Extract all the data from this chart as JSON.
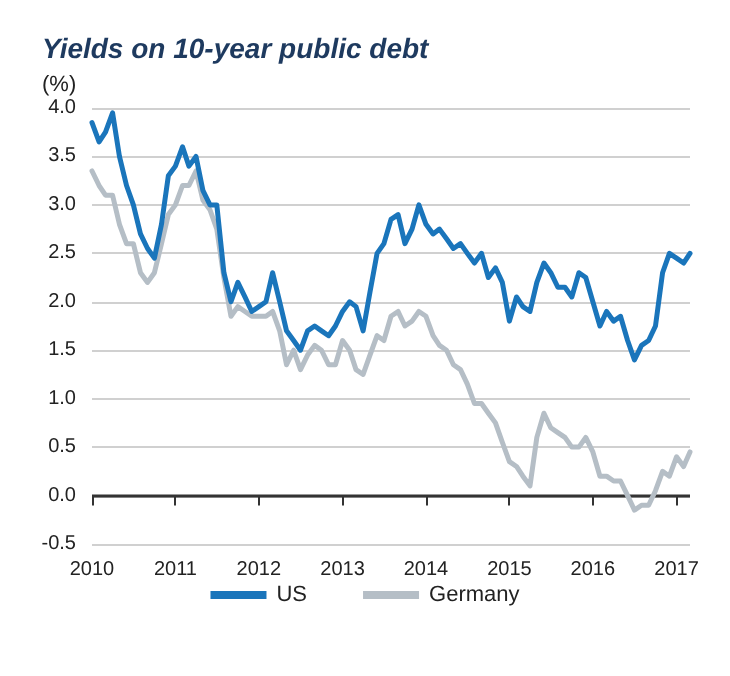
{
  "chart_data": {
    "type": "line",
    "title": "Yields on 10-year public debt",
    "ylabel": "(%)",
    "x": [
      "2010-01",
      "2010-02",
      "2010-03",
      "2010-04",
      "2010-05",
      "2010-06",
      "2010-07",
      "2010-08",
      "2010-09",
      "2010-10",
      "2010-11",
      "2010-12",
      "2011-01",
      "2011-02",
      "2011-03",
      "2011-04",
      "2011-05",
      "2011-06",
      "2011-07",
      "2011-08",
      "2011-09",
      "2011-10",
      "2011-11",
      "2011-12",
      "2012-01",
      "2012-02",
      "2012-03",
      "2012-04",
      "2012-05",
      "2012-06",
      "2012-07",
      "2012-08",
      "2012-09",
      "2012-10",
      "2012-11",
      "2012-12",
      "2013-01",
      "2013-02",
      "2013-03",
      "2013-04",
      "2013-05",
      "2013-06",
      "2013-07",
      "2013-08",
      "2013-09",
      "2013-10",
      "2013-11",
      "2013-12",
      "2014-01",
      "2014-02",
      "2014-03",
      "2014-04",
      "2014-05",
      "2014-06",
      "2014-07",
      "2014-08",
      "2014-09",
      "2014-10",
      "2014-11",
      "2014-12",
      "2015-01",
      "2015-02",
      "2015-03",
      "2015-04",
      "2015-05",
      "2015-06",
      "2015-07",
      "2015-08",
      "2015-09",
      "2015-10",
      "2015-11",
      "2015-12",
      "2016-01",
      "2016-02",
      "2016-03",
      "2016-04",
      "2016-05",
      "2016-06",
      "2016-07",
      "2016-08",
      "2016-09",
      "2016-10",
      "2016-11",
      "2016-12",
      "2017-01",
      "2017-02",
      "2017-03"
    ],
    "series": [
      {
        "name": "US",
        "color": "#1a75bb",
        "values": [
          3.85,
          3.65,
          3.75,
          3.95,
          3.5,
          3.2,
          3.0,
          2.7,
          2.55,
          2.45,
          2.8,
          3.3,
          3.4,
          3.6,
          3.4,
          3.5,
          3.15,
          3.0,
          3.0,
          2.3,
          2.0,
          2.2,
          2.05,
          1.9,
          1.95,
          2.0,
          2.3,
          2.0,
          1.7,
          1.6,
          1.5,
          1.7,
          1.75,
          1.7,
          1.65,
          1.75,
          1.9,
          2.0,
          1.95,
          1.7,
          2.1,
          2.5,
          2.6,
          2.85,
          2.9,
          2.6,
          2.75,
          3.0,
          2.8,
          2.7,
          2.75,
          2.65,
          2.55,
          2.6,
          2.5,
          2.4,
          2.5,
          2.25,
          2.35,
          2.2,
          1.8,
          2.05,
          1.95,
          1.9,
          2.2,
          2.4,
          2.3,
          2.15,
          2.15,
          2.05,
          2.3,
          2.25,
          2.0,
          1.75,
          1.9,
          1.8,
          1.85,
          1.6,
          1.4,
          1.55,
          1.6,
          1.75,
          2.3,
          2.5,
          2.45,
          2.4,
          2.5
        ]
      },
      {
        "name": "Germany",
        "color": "#b5bec6",
        "values": [
          3.35,
          3.2,
          3.1,
          3.1,
          2.8,
          2.6,
          2.6,
          2.3,
          2.2,
          2.3,
          2.6,
          2.9,
          3.0,
          3.2,
          3.2,
          3.35,
          3.05,
          2.95,
          2.75,
          2.25,
          1.85,
          1.95,
          1.9,
          1.85,
          1.85,
          1.85,
          1.9,
          1.7,
          1.35,
          1.5,
          1.3,
          1.45,
          1.55,
          1.5,
          1.35,
          1.35,
          1.6,
          1.5,
          1.3,
          1.25,
          1.45,
          1.65,
          1.6,
          1.85,
          1.9,
          1.75,
          1.8,
          1.9,
          1.85,
          1.65,
          1.55,
          1.5,
          1.35,
          1.3,
          1.15,
          0.95,
          0.95,
          0.85,
          0.75,
          0.55,
          0.35,
          0.3,
          0.2,
          0.1,
          0.6,
          0.85,
          0.7,
          0.65,
          0.6,
          0.5,
          0.5,
          0.6,
          0.45,
          0.2,
          0.2,
          0.15,
          0.15,
          0.0,
          -0.15,
          -0.1,
          -0.1,
          0.05,
          0.25,
          0.2,
          0.4,
          0.3,
          0.45
        ]
      }
    ],
    "xlim": [
      "2010-01",
      "2017-03"
    ],
    "xticks": [
      "2010",
      "2011",
      "2012",
      "2013",
      "2014",
      "2015",
      "2016",
      "2017"
    ],
    "ylim": [
      -0.5,
      4.0
    ],
    "yticks": [
      {
        "value": -0.5,
        "label": "-0.5"
      },
      {
        "value": 0,
        "label": "0.0"
      },
      {
        "value": 0.5,
        "label": "0.5"
      },
      {
        "value": 1,
        "label": "1.0"
      },
      {
        "value": 1.5,
        "label": "1.5"
      },
      {
        "value": 2,
        "label": "2.0"
      },
      {
        "value": 2.5,
        "label": "2.5"
      },
      {
        "value": 3,
        "label": "3.0"
      },
      {
        "value": 3.5,
        "label": "3.5"
      },
      {
        "value": 4,
        "label": "4.0"
      }
    ],
    "ref_lines": [
      {
        "axis": "y",
        "value": 0,
        "color": "#333333"
      }
    ],
    "grid": "y",
    "legend": "bottom",
    "line_style": "solid"
  }
}
